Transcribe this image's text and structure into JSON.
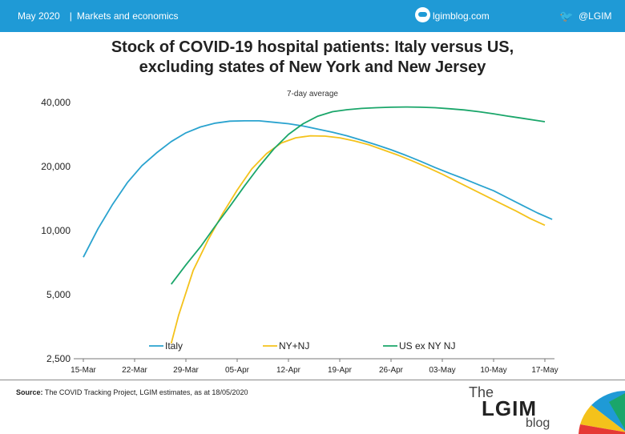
{
  "header": {
    "date": "May 2020",
    "category": "Markets and economics",
    "site": "lgimblog.com",
    "twitter": "@LGIM",
    "bar_color": "#1f9ad6"
  },
  "chart_data": {
    "type": "line",
    "title_line1": "Stock of COVID-19 hospital patients: Italy versus US,",
    "title_line2": "excluding states of New York and New Jersey",
    "subtitle": "7-day average",
    "y_scale": "log",
    "ylim": [
      2500,
      40000
    ],
    "y_ticks": [
      2500,
      5000,
      10000,
      20000,
      40000
    ],
    "y_tick_labels": [
      "2,500",
      "5,000",
      "10,000",
      "20,000",
      "40,000"
    ],
    "xlim": [
      "2020-03-15",
      "2020-05-17"
    ],
    "x_ticks": [
      "2020-03-15",
      "2020-03-22",
      "2020-03-29",
      "2020-04-05",
      "2020-04-12",
      "2020-04-19",
      "2020-04-26",
      "2020-05-03",
      "2020-05-10",
      "2020-05-17"
    ],
    "x_tick_labels": [
      "15-Mar",
      "22-Mar",
      "29-Mar",
      "05-Apr",
      "12-Apr",
      "19-Apr",
      "26-Apr",
      "03-May",
      "10-May",
      "17-May"
    ],
    "grid": false,
    "legend_position": "bottom",
    "series": [
      {
        "name": "Italy",
        "color": "#2aa3cf",
        "points": [
          [
            "2020-03-15",
            7500
          ],
          [
            "2020-03-17",
            10200
          ],
          [
            "2020-03-19",
            13300
          ],
          [
            "2020-03-21",
            16800
          ],
          [
            "2020-03-23",
            20200
          ],
          [
            "2020-03-25",
            23200
          ],
          [
            "2020-03-27",
            26200
          ],
          [
            "2020-03-29",
            28800
          ],
          [
            "2020-03-31",
            30700
          ],
          [
            "2020-04-02",
            32000
          ],
          [
            "2020-04-04",
            32700
          ],
          [
            "2020-04-06",
            32800
          ],
          [
            "2020-04-08",
            32800
          ],
          [
            "2020-04-10",
            32300
          ],
          [
            "2020-04-12",
            31800
          ],
          [
            "2020-04-14",
            31000
          ],
          [
            "2020-04-16",
            30000
          ],
          [
            "2020-04-18",
            29000
          ],
          [
            "2020-04-20",
            27900
          ],
          [
            "2020-04-22",
            26600
          ],
          [
            "2020-04-24",
            25300
          ],
          [
            "2020-04-26",
            24000
          ],
          [
            "2020-04-28",
            22600
          ],
          [
            "2020-04-30",
            21200
          ],
          [
            "2020-05-02",
            19800
          ],
          [
            "2020-05-04",
            18600
          ],
          [
            "2020-05-06",
            17500
          ],
          [
            "2020-05-08",
            16400
          ],
          [
            "2020-05-10",
            15400
          ],
          [
            "2020-05-12",
            14200
          ],
          [
            "2020-05-14",
            13100
          ],
          [
            "2020-05-16",
            12100
          ],
          [
            "2020-05-18",
            11300
          ]
        ]
      },
      {
        "name": "NY+NJ",
        "color": "#f4c21b",
        "points": [
          [
            "2020-03-27",
            2950
          ],
          [
            "2020-03-28",
            4000
          ],
          [
            "2020-03-30",
            6500
          ],
          [
            "2020-04-01",
            9000
          ],
          [
            "2020-04-03",
            12000
          ],
          [
            "2020-04-05",
            15500
          ],
          [
            "2020-04-07",
            19500
          ],
          [
            "2020-04-09",
            23000
          ],
          [
            "2020-04-11",
            25800
          ],
          [
            "2020-04-13",
            27300
          ],
          [
            "2020-04-15",
            27900
          ],
          [
            "2020-04-17",
            27800
          ],
          [
            "2020-04-19",
            27300
          ],
          [
            "2020-04-21",
            26400
          ],
          [
            "2020-04-23",
            25300
          ],
          [
            "2020-04-25",
            23900
          ],
          [
            "2020-04-27",
            22600
          ],
          [
            "2020-04-29",
            21200
          ],
          [
            "2020-05-01",
            19800
          ],
          [
            "2020-05-03",
            18400
          ],
          [
            "2020-05-05",
            17000
          ],
          [
            "2020-05-07",
            15700
          ],
          [
            "2020-05-09",
            14500
          ],
          [
            "2020-05-11",
            13400
          ],
          [
            "2020-05-13",
            12400
          ],
          [
            "2020-05-15",
            11400
          ],
          [
            "2020-05-17",
            10600
          ]
        ]
      },
      {
        "name": "US ex NY NJ",
        "color": "#1aa66a",
        "points": [
          [
            "2020-03-27",
            5600
          ],
          [
            "2020-03-29",
            6900
          ],
          [
            "2020-03-31",
            8400
          ],
          [
            "2020-04-02",
            10500
          ],
          [
            "2020-04-04",
            13000
          ],
          [
            "2020-04-06",
            16200
          ],
          [
            "2020-04-08",
            20000
          ],
          [
            "2020-04-10",
            24200
          ],
          [
            "2020-04-12",
            28300
          ],
          [
            "2020-04-14",
            31800
          ],
          [
            "2020-04-16",
            34500
          ],
          [
            "2020-04-18",
            36200
          ],
          [
            "2020-04-20",
            37000
          ],
          [
            "2020-04-22",
            37500
          ],
          [
            "2020-04-24",
            37800
          ],
          [
            "2020-04-26",
            38000
          ],
          [
            "2020-04-28",
            38100
          ],
          [
            "2020-04-30",
            38000
          ],
          [
            "2020-05-02",
            37800
          ],
          [
            "2020-05-04",
            37400
          ],
          [
            "2020-05-06",
            36900
          ],
          [
            "2020-05-08",
            36200
          ],
          [
            "2020-05-10",
            35400
          ],
          [
            "2020-05-12",
            34500
          ],
          [
            "2020-05-14",
            33700
          ],
          [
            "2020-05-16",
            32900
          ],
          [
            "2020-05-17",
            32500
          ]
        ]
      }
    ]
  },
  "footer": {
    "source_label": "Source:",
    "source_text": "The COVID Tracking Project, LGIM estimates, as at 18/05/2020"
  },
  "logo": {
    "the": "The",
    "lgim": "LGIM",
    "blog": "blog"
  }
}
